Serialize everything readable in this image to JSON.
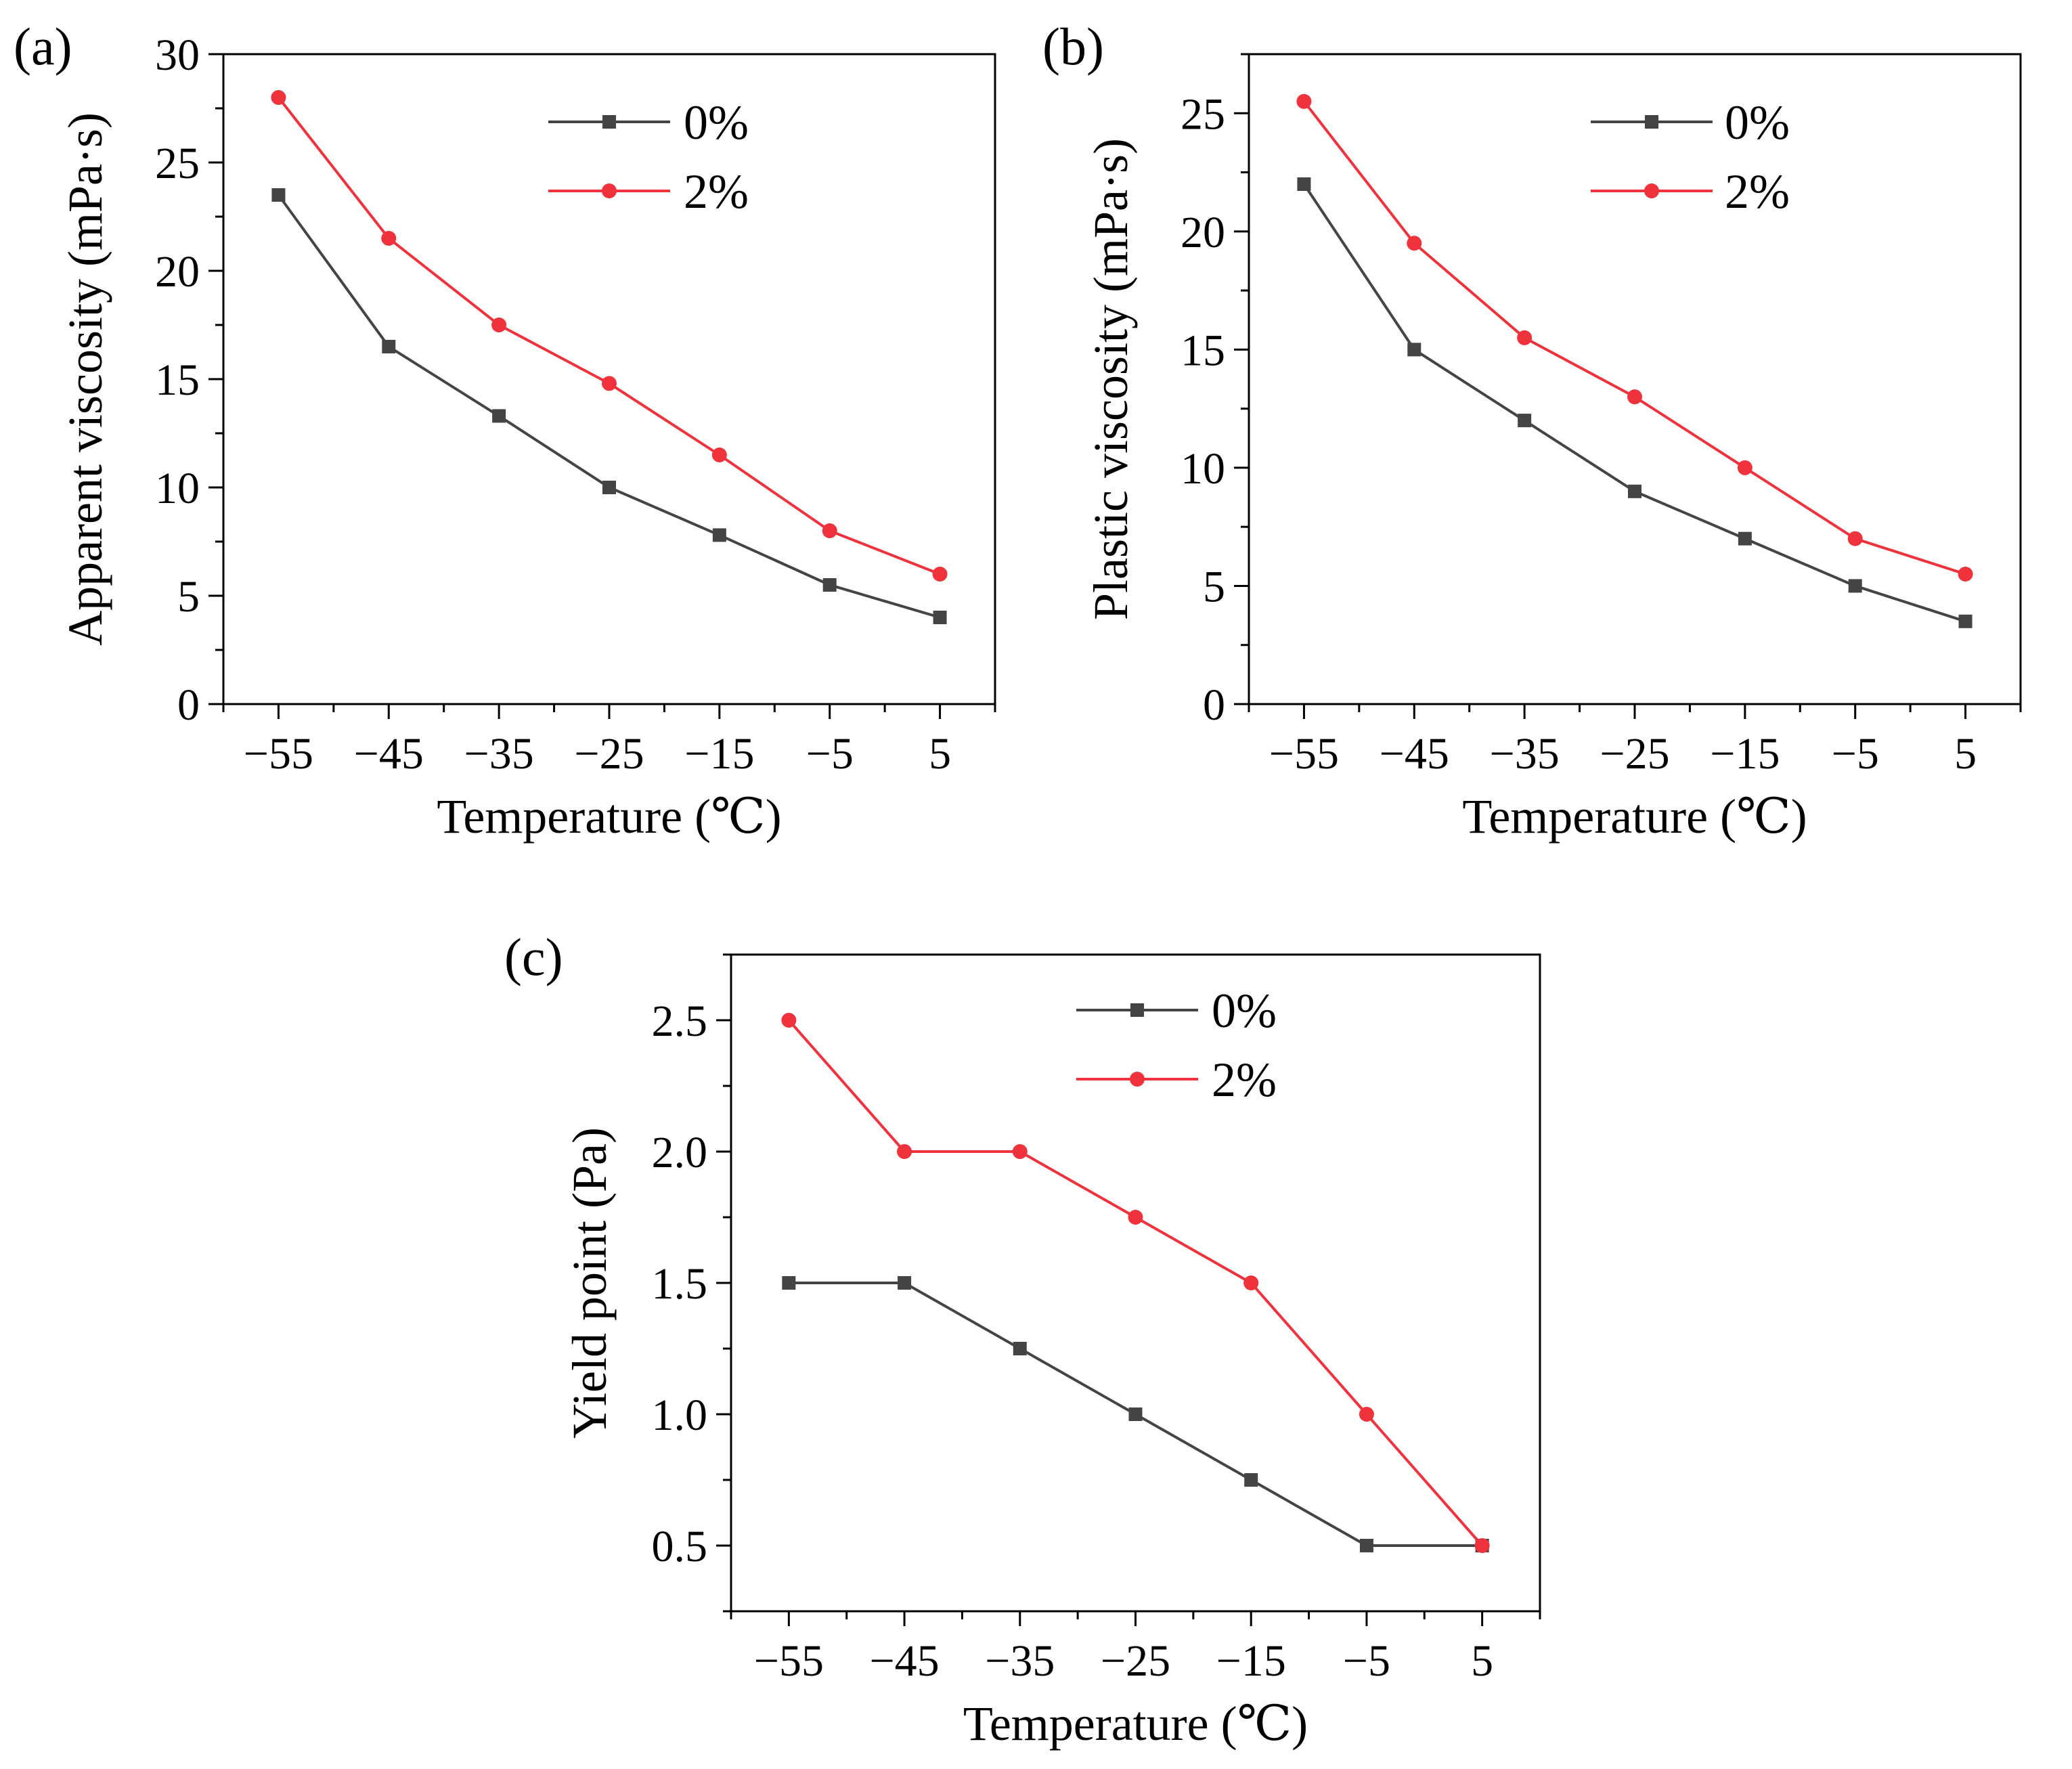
{
  "chart_data": [
    {
      "type": "line",
      "panel_label": "(a)",
      "xlabel": "Temperature (℃)",
      "ylabel": "Apparent viscosity (mPa·s)",
      "x": [
        -55,
        -45,
        -35,
        -25,
        -15,
        -5,
        5
      ],
      "x_tick_labels": [
        "−55",
        "−45",
        "−35",
        "−25",
        "−15",
        "−5",
        "5"
      ],
      "xlim": [
        -60,
        10
      ],
      "ylim": [
        0,
        30
      ],
      "y_ticks": [
        0,
        5,
        10,
        15,
        20,
        25,
        30
      ],
      "y_tick_labels": [
        "0",
        "5",
        "10",
        "15",
        "20",
        "25",
        "30"
      ],
      "legend_position": "top-right",
      "series": [
        {
          "name": "0%",
          "color": "#444444",
          "marker": "square",
          "values": [
            23.5,
            16.5,
            13.3,
            10.0,
            7.8,
            5.5,
            4.0
          ]
        },
        {
          "name": "2%",
          "color": "#f0323c",
          "marker": "circle",
          "values": [
            28.0,
            21.5,
            17.5,
            14.8,
            11.5,
            8.0,
            6.0
          ]
        }
      ]
    },
    {
      "type": "line",
      "panel_label": "(b)",
      "xlabel": "Temperature (℃)",
      "ylabel": "Plastic viscosity (mPa·s)",
      "x": [
        -55,
        -45,
        -35,
        -25,
        -15,
        -5,
        5
      ],
      "x_tick_labels": [
        "−55",
        "−45",
        "−35",
        "−25",
        "−15",
        "−5",
        "5"
      ],
      "xlim": [
        -60,
        10
      ],
      "ylim": [
        0,
        27.5
      ],
      "y_ticks": [
        0,
        5,
        10,
        15,
        20,
        25
      ],
      "y_tick_labels": [
        "0",
        "5",
        "10",
        "15",
        "20",
        "25"
      ],
      "legend_position": "top-right",
      "series": [
        {
          "name": "0%",
          "color": "#444444",
          "marker": "square",
          "values": [
            22.0,
            15.0,
            12.0,
            9.0,
            7.0,
            5.0,
            3.5
          ]
        },
        {
          "name": "2%",
          "color": "#f0323c",
          "marker": "circle",
          "values": [
            25.5,
            19.5,
            15.5,
            13.0,
            10.0,
            7.0,
            5.5
          ]
        }
      ]
    },
    {
      "type": "line",
      "panel_label": "(c)",
      "xlabel": "Temperature (℃)",
      "ylabel": "Yield point (Pa)",
      "x": [
        -55,
        -45,
        -35,
        -25,
        -15,
        -5,
        5
      ],
      "x_tick_labels": [
        "−55",
        "−45",
        "−35",
        "−25",
        "−15",
        "−5",
        "5"
      ],
      "xlim": [
        -60,
        10
      ],
      "ylim": [
        0.25,
        2.75
      ],
      "y_ticks": [
        0.5,
        1.0,
        1.5,
        2.0,
        2.5
      ],
      "y_tick_labels": [
        "0.5",
        "1.0",
        "1.5",
        "2.0",
        "2.5"
      ],
      "legend_position": "top-center",
      "series": [
        {
          "name": "0%",
          "color": "#444444",
          "marker": "square",
          "values": [
            1.5,
            1.5,
            1.25,
            1.0,
            0.75,
            0.5,
            0.5
          ]
        },
        {
          "name": "2%",
          "color": "#f0323c",
          "marker": "circle",
          "values": [
            2.5,
            2.0,
            2.0,
            1.75,
            1.5,
            1.0,
            0.5
          ]
        }
      ]
    }
  ]
}
